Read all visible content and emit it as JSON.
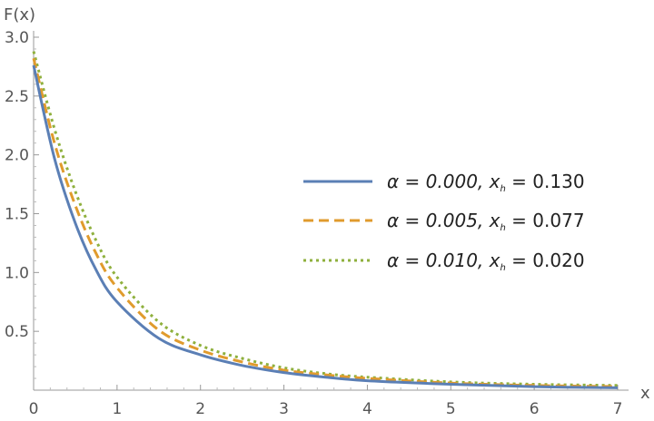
{
  "chart_data": {
    "type": "line",
    "title": "",
    "xlabel": "x",
    "ylabel": "F(x)",
    "xlim": [
      0,
      7.05
    ],
    "ylim": [
      0,
      3.0
    ],
    "x_ticks": [
      "0",
      "1",
      "2",
      "3",
      "4",
      "5",
      "6",
      "7"
    ],
    "y_ticks": [
      "0.5",
      "1.0",
      "1.5",
      "2.0",
      "2.5",
      "3.0"
    ],
    "grid": false,
    "legend_position": "right",
    "series": [
      {
        "alpha": "α = 0.000,",
        "xh": "x",
        "sub": "h",
        "value": "= 0.130",
        "color": "#5b7fb5",
        "style": "solid",
        "x": [
          0,
          0.25,
          0.5,
          0.75,
          1,
          1.5,
          2,
          2.5,
          3,
          3.5,
          4,
          5,
          6,
          7
        ],
        "y": [
          2.76,
          1.97,
          1.42,
          1.02,
          0.75,
          0.44,
          0.3,
          0.21,
          0.15,
          0.11,
          0.08,
          0.05,
          0.03,
          0.02
        ]
      },
      {
        "alpha": "α = 0.005,",
        "xh": "x",
        "sub": "h",
        "value": "= 0.077",
        "color": "#e09b2d",
        "style": "dashed",
        "x": [
          0,
          0.25,
          0.5,
          0.75,
          1,
          1.5,
          2,
          2.5,
          3,
          3.5,
          4,
          5,
          6,
          7
        ],
        "y": [
          2.82,
          2.1,
          1.57,
          1.16,
          0.87,
          0.51,
          0.34,
          0.24,
          0.17,
          0.13,
          0.1,
          0.06,
          0.04,
          0.03
        ]
      },
      {
        "alpha": "α = 0.010,",
        "xh": "x",
        "sub": "h",
        "value": "= 0.020",
        "color": "#8fb03d",
        "style": "dotted",
        "x": [
          0,
          0.25,
          0.5,
          0.75,
          1,
          1.5,
          2,
          2.5,
          3,
          3.5,
          4,
          5,
          6,
          7
        ],
        "y": [
          2.88,
          2.22,
          1.69,
          1.27,
          0.96,
          0.58,
          0.38,
          0.27,
          0.19,
          0.14,
          0.11,
          0.07,
          0.05,
          0.04
        ]
      }
    ]
  }
}
